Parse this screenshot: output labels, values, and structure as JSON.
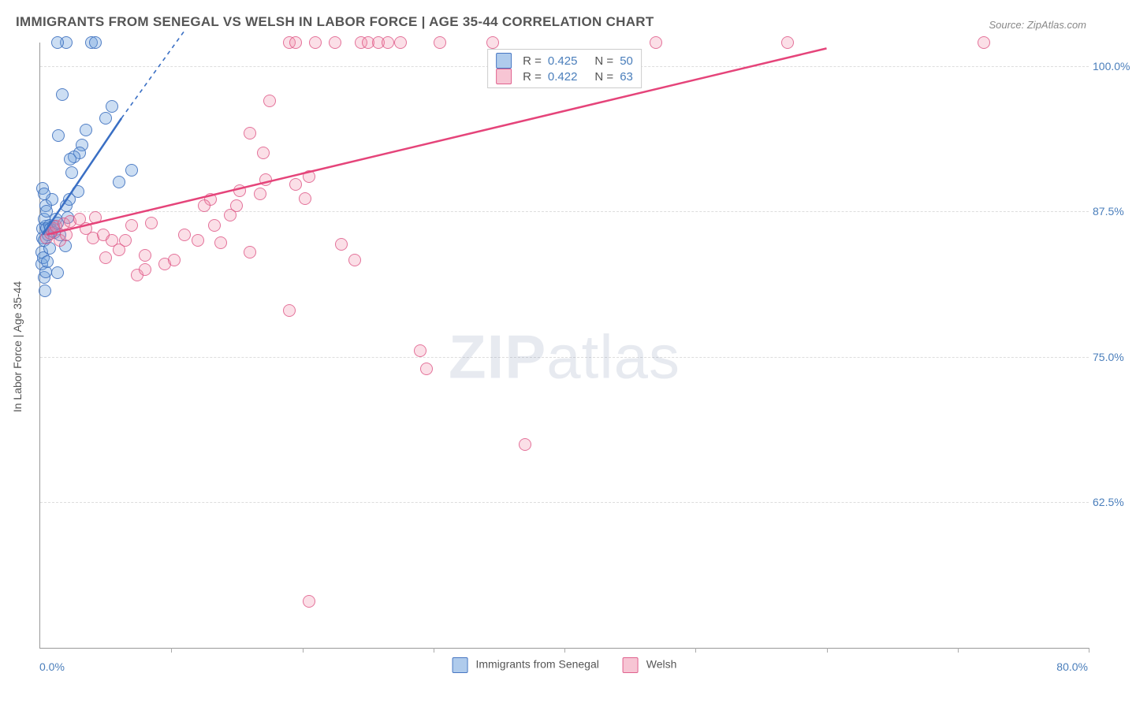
{
  "title": "IMMIGRANTS FROM SENEGAL VS WELSH IN LABOR FORCE | AGE 35-44 CORRELATION CHART",
  "source": "Source: ZipAtlas.com",
  "watermark_bold": "ZIP",
  "watermark_rest": "atlas",
  "y_axis_label": "In Labor Force | Age 35-44",
  "chart": {
    "type": "scatter",
    "background_color": "#ffffff",
    "grid_color": "#dddddd",
    "axis_color": "#999999",
    "x_axis": {
      "min": 0.0,
      "max": 80.0,
      "min_label": "0.0%",
      "max_label": "80.0%",
      "tick_step": 10.0,
      "tick_label_color": "#4a7ebb"
    },
    "y_axis": {
      "min": 50.0,
      "max": 102.0,
      "ticks": [
        62.5,
        75.0,
        87.5,
        100.0
      ],
      "tick_labels": [
        "62.5%",
        "75.0%",
        "87.5%",
        "100.0%"
      ],
      "tick_label_color": "#4a7ebb"
    },
    "series": [
      {
        "name": "Immigrants from Senegal",
        "color_fill": "rgba(110,160,220,0.35)",
        "color_stroke": "rgba(60,110,190,0.85)",
        "marker": "circle",
        "marker_size": 16,
        "R": "0.425",
        "N": "50",
        "trend": {
          "x1": 0.2,
          "y1": 85.5,
          "x2": 6.2,
          "y2": 95.5,
          "dash_x2": 11.0,
          "dash_y2": 103.0,
          "stroke": "#3a6fc4",
          "width": 2.5
        },
        "points": [
          [
            0.1,
            84.0
          ],
          [
            0.2,
            85.2
          ],
          [
            0.3,
            85.0
          ],
          [
            0.2,
            86.0
          ],
          [
            0.4,
            86.2
          ],
          [
            0.3,
            86.8
          ],
          [
            0.5,
            86.0
          ],
          [
            0.15,
            83.0
          ],
          [
            0.25,
            83.5
          ],
          [
            0.3,
            81.8
          ],
          [
            0.4,
            82.3
          ],
          [
            0.35,
            80.7
          ],
          [
            0.6,
            85.5
          ],
          [
            0.7,
            86.3
          ],
          [
            0.8,
            86.0
          ],
          [
            0.9,
            85.8
          ],
          [
            1.0,
            86.2
          ],
          [
            1.1,
            85.7
          ],
          [
            1.2,
            86.8
          ],
          [
            1.3,
            82.2
          ],
          [
            1.5,
            85.5
          ],
          [
            0.4,
            88.0
          ],
          [
            0.9,
            88.5
          ],
          [
            2.0,
            88.0
          ],
          [
            2.2,
            88.5
          ],
          [
            2.1,
            87.0
          ],
          [
            0.2,
            89.5
          ],
          [
            0.3,
            89.0
          ],
          [
            3.5,
            94.5
          ],
          [
            3.2,
            93.2
          ],
          [
            3.0,
            92.5
          ],
          [
            2.6,
            92.2
          ],
          [
            2.4,
            90.8
          ],
          [
            2.3,
            92.0
          ],
          [
            2.9,
            89.2
          ],
          [
            1.3,
            86.5
          ],
          [
            6.0,
            90.0
          ],
          [
            7.0,
            91.0
          ],
          [
            3.9,
            102.0
          ],
          [
            4.2,
            102.0
          ],
          [
            5.0,
            95.5
          ],
          [
            5.5,
            96.5
          ],
          [
            2.0,
            102.0
          ],
          [
            1.3,
            102.0
          ],
          [
            1.7,
            97.5
          ],
          [
            1.4,
            94.0
          ],
          [
            0.5,
            87.5
          ],
          [
            0.7,
            84.3
          ],
          [
            0.55,
            83.2
          ],
          [
            1.9,
            84.5
          ]
        ]
      },
      {
        "name": "Welsh",
        "color_fill": "rgba(240,140,170,0.28)",
        "color_stroke": "rgba(220,80,130,0.75)",
        "marker": "circle",
        "marker_size": 16,
        "R": "0.422",
        "N": "63",
        "trend": {
          "x1": 0.5,
          "y1": 85.5,
          "x2": 60.0,
          "y2": 101.5,
          "stroke": "#e5447a",
          "width": 2.5
        },
        "points": [
          [
            0.5,
            85.2
          ],
          [
            0.8,
            85.6
          ],
          [
            1.0,
            86.0
          ],
          [
            1.5,
            85.0
          ],
          [
            2.0,
            85.5
          ],
          [
            1.2,
            86.2
          ],
          [
            1.8,
            86.4
          ],
          [
            2.3,
            86.6
          ],
          [
            3.0,
            86.8
          ],
          [
            4.0,
            85.2
          ],
          [
            4.2,
            87.0
          ],
          [
            4.8,
            85.5
          ],
          [
            5.5,
            85.0
          ],
          [
            3.5,
            86.0
          ],
          [
            6.0,
            84.2
          ],
          [
            6.5,
            85.0
          ],
          [
            7.0,
            86.3
          ],
          [
            7.4,
            82.0
          ],
          [
            8.5,
            86.5
          ],
          [
            8.0,
            83.7
          ],
          [
            8.0,
            82.5
          ],
          [
            9.5,
            83.0
          ],
          [
            10.2,
            83.3
          ],
          [
            5.0,
            83.5
          ],
          [
            11.0,
            85.5
          ],
          [
            12.0,
            85.0
          ],
          [
            13.3,
            86.3
          ],
          [
            13.8,
            84.8
          ],
          [
            14.5,
            87.2
          ],
          [
            15.0,
            88.0
          ],
          [
            15.2,
            89.3
          ],
          [
            16.8,
            89.0
          ],
          [
            17.2,
            90.2
          ],
          [
            19.5,
            89.8
          ],
          [
            20.2,
            88.6
          ],
          [
            20.5,
            90.5
          ],
          [
            16.0,
            94.2
          ],
          [
            17.0,
            92.5
          ],
          [
            23.0,
            84.7
          ],
          [
            24.0,
            83.3
          ],
          [
            16.0,
            84.0
          ],
          [
            13.0,
            88.5
          ],
          [
            12.5,
            88.0
          ],
          [
            19.0,
            79.0
          ],
          [
            19.0,
            102.0
          ],
          [
            17.5,
            97.0
          ],
          [
            21.0,
            102.0
          ],
          [
            22.5,
            102.0
          ],
          [
            24.5,
            102.0
          ],
          [
            25.0,
            102.0
          ],
          [
            25.8,
            102.0
          ],
          [
            26.5,
            102.0
          ],
          [
            27.5,
            102.0
          ],
          [
            30.5,
            102.0
          ],
          [
            34.5,
            102.0
          ],
          [
            47.0,
            102.0
          ],
          [
            29.0,
            75.5
          ],
          [
            29.5,
            74.0
          ],
          [
            37.0,
            67.5
          ],
          [
            20.5,
            54.0
          ],
          [
            57.0,
            102.0
          ],
          [
            72.0,
            102.0
          ],
          [
            19.5,
            102.0
          ]
        ]
      }
    ]
  },
  "legend_bottom": {
    "items": [
      {
        "label": "Immigrants from Senegal",
        "fill": "rgba(110,160,220,0.55)",
        "stroke": "rgba(60,110,190,0.9)"
      },
      {
        "label": "Welsh",
        "fill": "rgba(240,140,170,0.5)",
        "stroke": "rgba(220,80,130,0.85)"
      }
    ]
  }
}
